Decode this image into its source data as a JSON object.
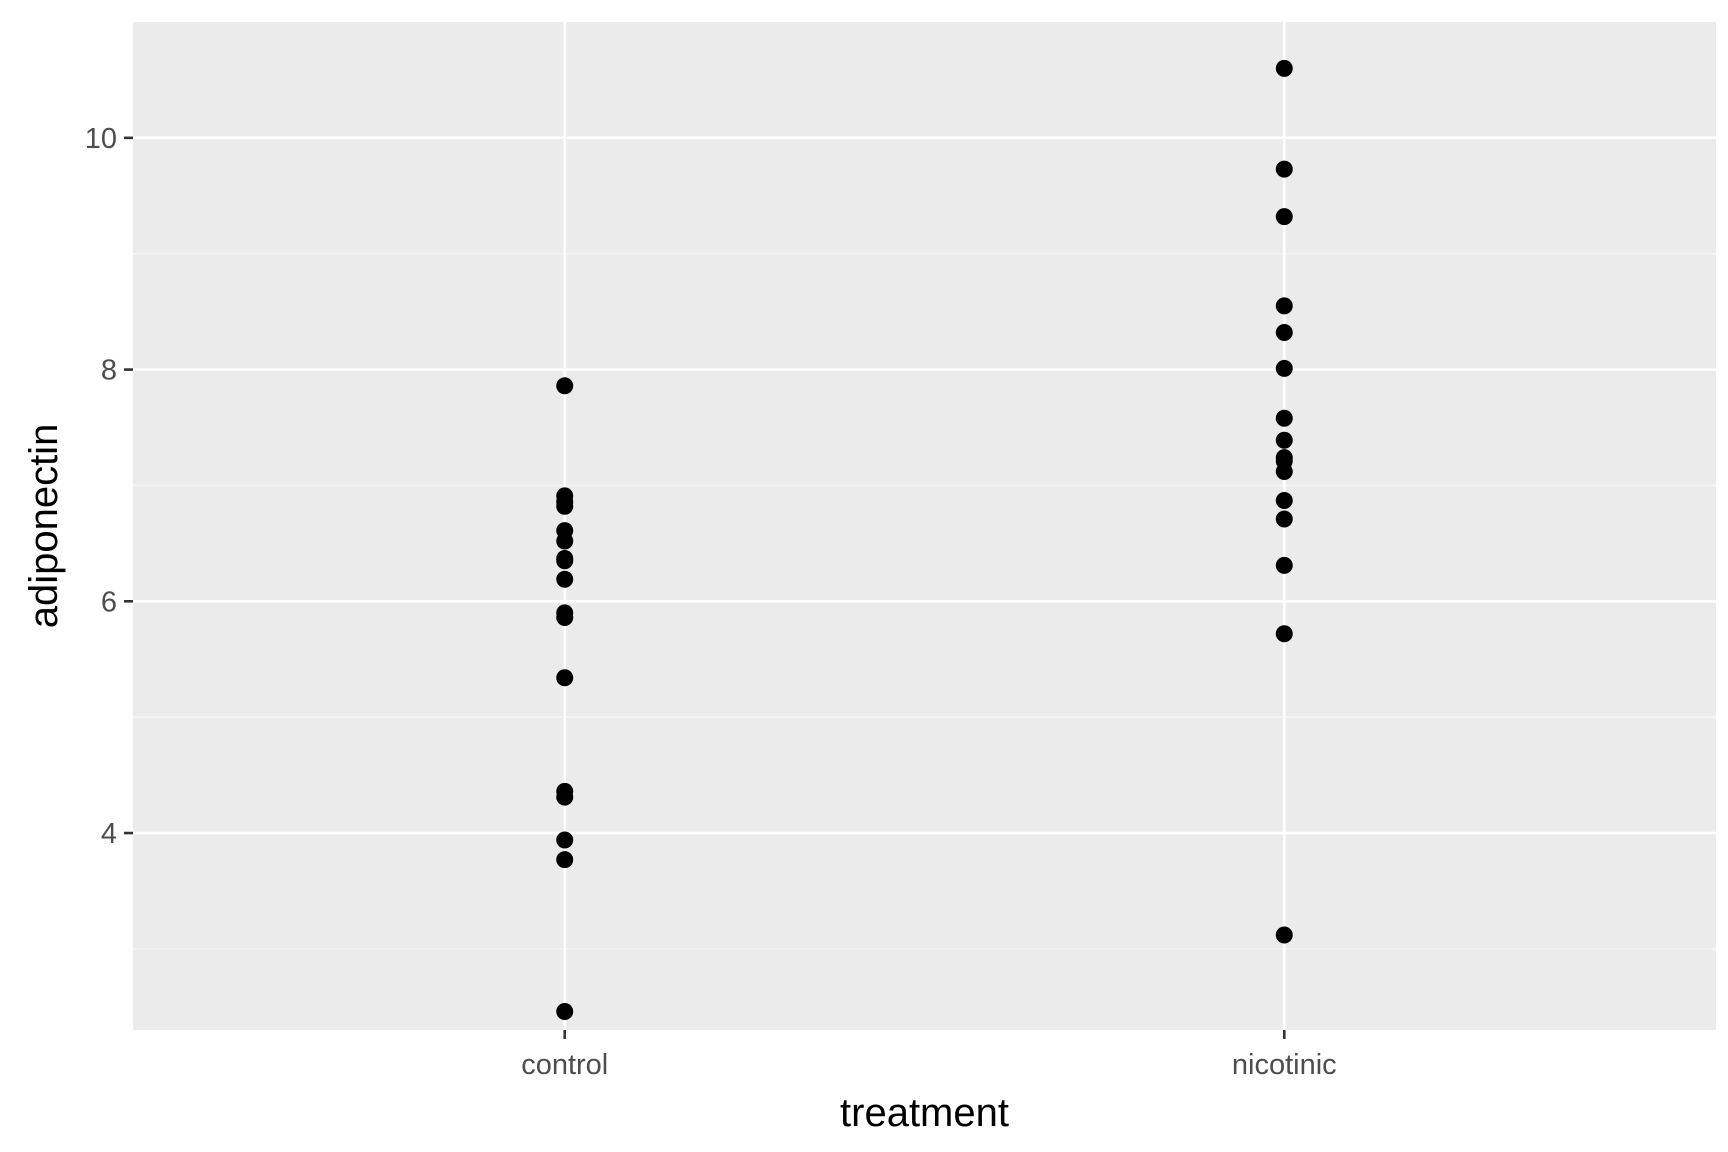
{
  "chart_data": {
    "type": "scatter",
    "title": "",
    "xlabel": "treatment",
    "ylabel": "adiponectin",
    "categories": [
      "control",
      "nicotinic"
    ],
    "ylim": [
      2.3,
      11.0
    ],
    "y_ticks": [
      4,
      6,
      8,
      10
    ],
    "y_tick_labels": [
      "4",
      "6",
      "8",
      "10"
    ],
    "y_minor_ticks": [
      3,
      5,
      7,
      9
    ],
    "grid": true,
    "legend": "none",
    "series": [
      {
        "category": "control",
        "values": [
          7.86,
          6.91,
          6.86,
          6.82,
          6.61,
          6.52,
          6.37,
          6.35,
          6.19,
          5.9,
          5.86,
          5.34,
          4.36,
          4.31,
          3.94,
          3.77,
          2.46
        ]
      },
      {
        "category": "nicotinic",
        "values": [
          10.6,
          9.73,
          9.32,
          8.55,
          8.32,
          8.01,
          7.58,
          7.39,
          7.24,
          7.21,
          7.12,
          6.87,
          6.71,
          6.31,
          5.72,
          3.12
        ]
      }
    ],
    "colors": {
      "panel_background": "#ebebeb",
      "grid_major": "#ffffff",
      "grid_minor": "#f5f5f5",
      "point": "#000000",
      "tick_text": "#4d4d4d",
      "axis_title": "#000000",
      "tick_mark": "#333333"
    }
  }
}
